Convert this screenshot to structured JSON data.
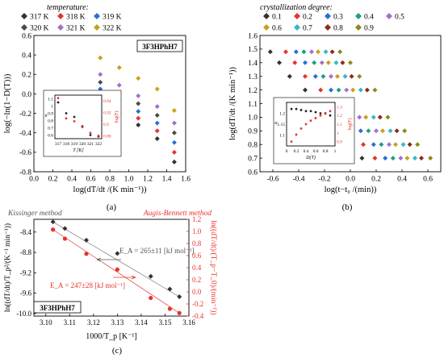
{
  "panels": {
    "a": {
      "legend_title": "temperature:",
      "legend": [
        {
          "label": "317 K",
          "color": "#333333"
        },
        {
          "label": "318 K",
          "color": "#e8332c"
        },
        {
          "label": "319 K",
          "color": "#2a6fd6"
        },
        {
          "label": "320 K",
          "color": "#4a4a4a"
        },
        {
          "label": "321 K",
          "color": "#a56fd0"
        },
        {
          "label": "322 K",
          "color": "#c8a11a"
        }
      ],
      "sample_label": "3F3HPhH7",
      "caption": "(a)"
    },
    "b": {
      "legend_title": "crystallization degree:",
      "legend": [
        {
          "label": "0.1",
          "color": "#333333"
        },
        {
          "label": "0.2",
          "color": "#e8332c"
        },
        {
          "label": "0.3",
          "color": "#2a6fd6"
        },
        {
          "label": "0.4",
          "color": "#1f9e89"
        },
        {
          "label": "0.5",
          "color": "#a56fd0"
        },
        {
          "label": "0.6",
          "color": "#c8a11a"
        },
        {
          "label": "0.7",
          "color": "#38b6c9"
        },
        {
          "label": "0.8",
          "color": "#8a2c1a"
        },
        {
          "label": "0.9",
          "color": "#8a8a1f"
        }
      ],
      "caption": "(b)"
    },
    "c": {
      "left_title": "Kissinger method",
      "right_title": "Augis-Bennett method",
      "ea1": "E_A = 265±11 [kJ mol⁻¹]",
      "ea2": "E_A = 247±28 [kJ mol⁻¹]",
      "sample_label": "3F3HPhH7",
      "caption": "(c)"
    }
  },
  "chart_data": [
    {
      "type": "scatter",
      "panel": "a",
      "xlabel": "log(dT/dt /(K min⁻¹))",
      "ylabel": "log(−ln(1−D(T)))",
      "xlim": [
        0,
        1.6
      ],
      "ylim": [
        -0.8,
        0.6
      ],
      "xticks": [
        "0.0",
        "0.2",
        "0.4",
        "0.6",
        "0.8",
        "1.0",
        "1.2",
        "1.4",
        "1.6"
      ],
      "yticks": [
        "-0.8",
        "-0.6",
        "-0.4",
        "-0.2",
        "0.0",
        "0.2",
        "0.4",
        "0.6"
      ],
      "x": [
        0.7,
        0.9,
        1.1,
        1.3,
        1.48
      ],
      "series": [
        {
          "name": "317 K",
          "color": "#333333",
          "values": [
            -0.08,
            -0.2,
            -0.32,
            -0.46,
            -0.7
          ]
        },
        {
          "name": "318 K",
          "color": "#e8332c",
          "values": [
            -0.02,
            -0.13,
            -0.25,
            -0.38,
            -0.6
          ]
        },
        {
          "name": "319 K",
          "color": "#2a6fd6",
          "values": [
            0.05,
            -0.06,
            -0.18,
            -0.3,
            -0.5
          ]
        },
        {
          "name": "320 K",
          "color": "#4a4a4a",
          "values": [
            0.12,
            0.01,
            -0.1,
            -0.22,
            -0.4
          ]
        },
        {
          "name": "321 K",
          "color": "#a56fd0",
          "values": [
            0.2,
            0.09,
            -0.02,
            -0.13,
            -0.3
          ]
        },
        {
          "name": "322 K",
          "color": "#c8a11a",
          "values": [
            0.37,
            0.27,
            0.16,
            0.05,
            -0.17
          ]
        }
      ],
      "grid": false
    },
    {
      "type": "scatter",
      "panel": "a-inset",
      "xlabel": "T [K]",
      "ylabel": "n",
      "y2label": "log(F)",
      "x": [
        317,
        318,
        319,
        320,
        321,
        322
      ],
      "xticks": [
        "317",
        "318",
        "319",
        "320",
        "321",
        "322"
      ],
      "yticks": [
        "0.6",
        "0.7",
        "0.8",
        "0.9",
        "1",
        "1.1"
      ],
      "y2ticks": [
        "0.88",
        "0.9",
        "0.92",
        "0.94"
      ],
      "series": [
        {
          "name": "n",
          "color": "#222222",
          "values": [
            1.05,
            0.9,
            0.85,
            0.72,
            0.6,
            0.58
          ]
        },
        {
          "name": "log(F)",
          "color": "#e8332c",
          "values": [
            0.945,
            0.91,
            0.905,
            0.895,
            0.885,
            0.88
          ]
        }
      ]
    },
    {
      "type": "scatter",
      "panel": "b",
      "xlabel": "log(t−t₀ /(min))",
      "ylabel": "log(dT/dt /(K min⁻¹))",
      "xlim": [
        -0.7,
        0.7
      ],
      "ylim": [
        0.6,
        1.6
      ],
      "xticks": [
        "-0.6",
        "-0.4",
        "-0.2",
        "0.0",
        "0.2",
        "0.4",
        "0.6"
      ],
      "yticks": [
        "0.6",
        "0.7",
        "0.8",
        "0.9",
        "1.0",
        "1.1",
        "1.2",
        "1.3",
        "1.4",
        "1.5",
        "1.6"
      ],
      "y": [
        1.48,
        1.4,
        1.3,
        1.2,
        1.0,
        0.9,
        0.8,
        0.7
      ],
      "series": [
        {
          "name": "0.1",
          "color": "#333333",
          "x": [
            -0.62,
            -0.55,
            -0.47,
            -0.35,
            -0.25,
            -0.12,
            -0.01,
            0.09
          ]
        },
        {
          "name": "0.2",
          "color": "#e8332c",
          "x": [
            -0.5,
            -0.43,
            -0.35,
            -0.23,
            -0.13,
            0.0,
            0.1,
            0.19
          ]
        },
        {
          "name": "0.3",
          "color": "#2a6fd6",
          "x": [
            -0.42,
            -0.35,
            -0.27,
            -0.15,
            -0.05,
            0.08,
            0.18,
            0.27
          ]
        },
        {
          "name": "0.4",
          "color": "#1f9e89",
          "x": [
            -0.36,
            -0.28,
            -0.21,
            -0.09,
            0.01,
            0.14,
            0.24,
            0.33
          ]
        },
        {
          "name": "0.5",
          "color": "#a56fd0",
          "x": [
            -0.3,
            -0.22,
            -0.15,
            -0.03,
            0.07,
            0.2,
            0.3,
            0.39
          ]
        },
        {
          "name": "0.6",
          "color": "#c8a11a",
          "x": [
            -0.25,
            -0.17,
            -0.1,
            0.02,
            0.12,
            0.25,
            0.35,
            0.44
          ]
        },
        {
          "name": "0.7",
          "color": "#38b6c9",
          "x": [
            -0.19,
            -0.11,
            -0.04,
            0.08,
            0.18,
            0.31,
            0.41,
            0.5
          ]
        },
        {
          "name": "0.8",
          "color": "#8a2c1a",
          "x": [
            -0.14,
            -0.06,
            0.01,
            0.13,
            0.23,
            0.36,
            0.46,
            0.55
          ]
        },
        {
          "name": "0.9",
          "color": "#8a8a1f",
          "x": [
            -0.08,
            0.0,
            0.07,
            0.19,
            0.29,
            0.42,
            0.52,
            0.62
          ]
        }
      ],
      "grid": false
    },
    {
      "type": "scatter",
      "panel": "b-inset",
      "xlabel": "D(T)",
      "ylabel": "α",
      "y2label": "log(F)",
      "x": [
        0.1,
        0.2,
        0.3,
        0.4,
        0.5,
        0.6,
        0.7,
        0.8,
        0.9
      ],
      "xticks": [
        "0",
        "0.2",
        "0.4",
        "0.6",
        "0.8",
        "1"
      ],
      "yticks": [
        "1.1",
        "1.15",
        "1.2"
      ],
      "y2ticks": [
        "0.9",
        "1",
        "1.1",
        "1.2",
        "1.3"
      ],
      "series": [
        {
          "name": "α",
          "color": "#222222",
          "values": [
            1.22,
            1.22,
            1.215,
            1.21,
            1.21,
            1.205,
            1.2,
            1.2,
            1.19
          ]
        },
        {
          "name": "log(F)",
          "color": "#e8332c",
          "values": [
            0.9,
            0.98,
            1.05,
            1.1,
            1.14,
            1.17,
            1.2,
            1.22,
            1.25
          ]
        }
      ]
    },
    {
      "type": "scatter",
      "panel": "c",
      "xlabel": "1000/T_p [K⁻¹]",
      "ylabel": "ln((dT/dt)/T_p²/(K⁻¹ min⁻¹))",
      "y2label": "ln((dT/dt)/(T_p−T_0)/(min⁻¹))",
      "xlim": [
        3.095,
        3.16
      ],
      "ylim": [
        -10.05,
        -8.15
      ],
      "y2lim": [
        -0.4,
        1.2
      ],
      "xticks": [
        "3.10",
        "3.11",
        "3.12",
        "3.13",
        "3.14",
        "3.15",
        "3.16"
      ],
      "yticks": [
        "-8.4",
        "-8.8",
        "-9.2",
        "-9.6",
        "-10.0"
      ],
      "y2ticks": [
        "1.2",
        "1.0",
        "0.8",
        "0.6",
        "0.4",
        "0.2",
        "0.0",
        "-0.2",
        "-0.4"
      ],
      "x": [
        3.103,
        3.108,
        3.117,
        3.13,
        3.144,
        3.152,
        3.156
      ],
      "series": [
        {
          "name": "Kissinger",
          "color": "#333333",
          "axis": "left",
          "values": [
            -8.2,
            -8.33,
            -8.56,
            -8.82,
            -9.27,
            -9.52,
            -9.67
          ]
        },
        {
          "name": "Augis-Bennett",
          "color": "#e8332c",
          "axis": "right",
          "values": [
            1.03,
            0.88,
            0.63,
            0.37,
            -0.1,
            -0.28,
            -0.35
          ]
        }
      ]
    }
  ]
}
